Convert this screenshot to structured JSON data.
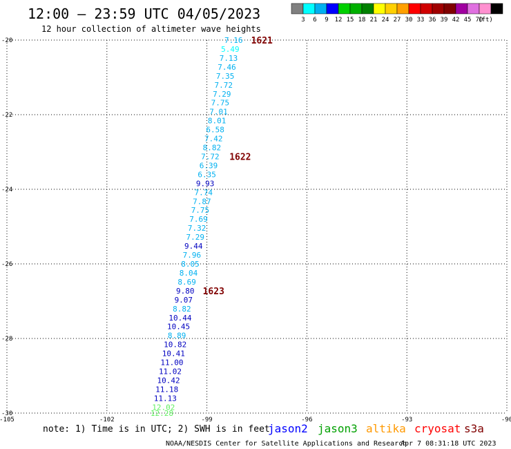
{
  "header": {
    "title": "12:00 — 23:59 UTC 04/05/2023",
    "subtitle": "12 hour collection of altimeter wave heights"
  },
  "colorbar": {
    "colors": [
      "#808080",
      "#00ffff",
      "#00b0f0",
      "#0000ff",
      "#00d000",
      "#00b000",
      "#008000",
      "#ffff00",
      "#ffd000",
      "#ffa000",
      "#ff0000",
      "#d00000",
      "#a00000",
      "#800000",
      "#a000a0",
      "#e070e0",
      "#ff90d0",
      "#000000"
    ],
    "labels": [
      "3",
      "6",
      "9",
      "12",
      "15",
      "18",
      "21",
      "24",
      "27",
      "30",
      "33",
      "36",
      "39",
      "42",
      "45",
      "70",
      "(ft)"
    ]
  },
  "footer": {
    "note": "note: 1) Time is in UTC; 2) SWH is in feet",
    "missions": [
      {
        "name": "jason2",
        "color": "#0000ff"
      },
      {
        "name": "jason3",
        "color": "#00a000"
      },
      {
        "name": "altika",
        "color": "#ff9900"
      },
      {
        "name": "cryosat",
        "color": "#ff0000"
      },
      {
        "name": "s3a",
        "color": "#800000"
      }
    ],
    "credit": "NOAA/NESDIS Center for Satellite Applications and Research",
    "timestamp": "Apr  7 08:31:18 UTC 2023"
  },
  "chart_data": {
    "type": "scatter",
    "title": "12:00 — 23:59 UTC 04/05/2023",
    "subtitle": "12 hour collection of altimeter wave heights",
    "xlabel": "",
    "ylabel": "",
    "xlim": [
      -105,
      -90
    ],
    "ylim": [
      -30,
      -20
    ],
    "x_ticks": [
      -105,
      -102,
      -99,
      -96,
      -93,
      -90
    ],
    "x_tick_labels": [
      "-105",
      "-102",
      "-99",
      "-96",
      "-93",
      "-90"
    ],
    "y_ticks": [
      -20,
      -22,
      -24,
      -26,
      -28,
      -30
    ],
    "y_tick_labels": [
      "-20",
      "-22",
      "-24",
      "-26",
      "-28",
      "-30"
    ],
    "grid": true,
    "series": [
      {
        "name": "cryosat",
        "points": [
          {
            "lon": -98.2,
            "lat": -20.0,
            "swh": "7.16",
            "color": "#00b0f0"
          },
          {
            "lon": -98.3,
            "lat": -20.24,
            "swh": "5.49",
            "color": "#00ffff"
          },
          {
            "lon": -98.35,
            "lat": -20.48,
            "swh": "7.13",
            "color": "#00b0f0"
          },
          {
            "lon": -98.4,
            "lat": -20.72,
            "swh": "7.46",
            "color": "#00b0f0"
          },
          {
            "lon": -98.45,
            "lat": -20.96,
            "swh": "7.35",
            "color": "#00b0f0"
          },
          {
            "lon": -98.5,
            "lat": -21.2,
            "swh": "7.72",
            "color": "#00b0f0"
          },
          {
            "lon": -98.55,
            "lat": -21.44,
            "swh": "7.29",
            "color": "#00b0f0"
          },
          {
            "lon": -98.6,
            "lat": -21.68,
            "swh": "7.75",
            "color": "#00b0f0"
          },
          {
            "lon": -98.65,
            "lat": -21.92,
            "swh": "7.01",
            "color": "#00b0f0"
          },
          {
            "lon": -98.7,
            "lat": -22.16,
            "swh": "8.01",
            "color": "#00b0f0"
          },
          {
            "lon": -98.75,
            "lat": -22.4,
            "swh": "6.58",
            "color": "#00b0f0"
          },
          {
            "lon": -98.8,
            "lat": -22.64,
            "swh": "7.42",
            "color": "#00b0f0"
          },
          {
            "lon": -98.85,
            "lat": -22.88,
            "swh": "8.82",
            "color": "#00b0f0"
          },
          {
            "lon": -98.9,
            "lat": -23.12,
            "swh": "7.72",
            "color": "#00b0f0"
          },
          {
            "lon": -98.95,
            "lat": -23.36,
            "swh": "6.39",
            "color": "#00b0f0"
          },
          {
            "lon": -99.0,
            "lat": -23.6,
            "swh": "6.35",
            "color": "#00b0f0"
          },
          {
            "lon": -99.05,
            "lat": -23.84,
            "swh": "9.93",
            "color": "#0000c0"
          },
          {
            "lon": -99.1,
            "lat": -24.08,
            "swh": "7.74",
            "color": "#00b0f0"
          },
          {
            "lon": -99.15,
            "lat": -24.32,
            "swh": "7.87",
            "color": "#00b0f0"
          },
          {
            "lon": -99.2,
            "lat": -24.56,
            "swh": "7.75",
            "color": "#00b0f0"
          },
          {
            "lon": -99.25,
            "lat": -24.8,
            "swh": "7.69",
            "color": "#00b0f0"
          },
          {
            "lon": -99.3,
            "lat": -25.04,
            "swh": "7.32",
            "color": "#00b0f0"
          },
          {
            "lon": -99.35,
            "lat": -25.28,
            "swh": "7.29",
            "color": "#00b0f0"
          },
          {
            "lon": -99.4,
            "lat": -25.52,
            "swh": "9.44",
            "color": "#0000c0"
          },
          {
            "lon": -99.45,
            "lat": -25.76,
            "swh": "7.96",
            "color": "#00b0f0"
          },
          {
            "lon": -99.5,
            "lat": -26.0,
            "swh": "8.05",
            "color": "#00b0f0"
          },
          {
            "lon": -99.55,
            "lat": -26.24,
            "swh": "8.04",
            "color": "#00b0f0"
          },
          {
            "lon": -99.6,
            "lat": -26.48,
            "swh": "8.69",
            "color": "#00b0f0"
          },
          {
            "lon": -99.65,
            "lat": -26.72,
            "swh": "9.80",
            "color": "#0000c0"
          },
          {
            "lon": -99.7,
            "lat": -26.96,
            "swh": "9.07",
            "color": "#0000c0"
          },
          {
            "lon": -99.75,
            "lat": -27.2,
            "swh": "8.82",
            "color": "#00b0f0"
          },
          {
            "lon": -99.8,
            "lat": -27.44,
            "swh": "10.44",
            "color": "#0000c0"
          },
          {
            "lon": -99.85,
            "lat": -27.68,
            "swh": "10.45",
            "color": "#0000c0"
          },
          {
            "lon": -99.9,
            "lat": -27.92,
            "swh": "8.89",
            "color": "#00b0f0"
          },
          {
            "lon": -99.95,
            "lat": -28.16,
            "swh": "10.82",
            "color": "#0000c0"
          },
          {
            "lon": -100.0,
            "lat": -28.4,
            "swh": "10.41",
            "color": "#0000c0"
          },
          {
            "lon": -100.05,
            "lat": -28.64,
            "swh": "11.00",
            "color": "#0000c0"
          },
          {
            "lon": -100.1,
            "lat": -28.88,
            "swh": "11.02",
            "color": "#0000c0"
          },
          {
            "lon": -100.15,
            "lat": -29.12,
            "swh": "10.42",
            "color": "#0000c0"
          },
          {
            "lon": -100.2,
            "lat": -29.36,
            "swh": "11.18",
            "color": "#0000c0"
          },
          {
            "lon": -100.25,
            "lat": -29.6,
            "swh": "11.13",
            "color": "#0000c0"
          },
          {
            "lon": -100.3,
            "lat": -29.84,
            "swh": "12.02",
            "color": "#60f060"
          },
          {
            "lon": -100.35,
            "lat": -30.0,
            "swh": "12.28",
            "color": "#60f060"
          }
        ]
      }
    ],
    "annotations": [
      {
        "text": "1621",
        "lon": -97.35,
        "lat": -20.0,
        "color": "#800000"
      },
      {
        "text": "1622",
        "lon": -98.0,
        "lat": -23.12,
        "color": "#800000"
      },
      {
        "text": "1623",
        "lon": -98.8,
        "lat": -26.72,
        "color": "#800000"
      }
    ]
  }
}
